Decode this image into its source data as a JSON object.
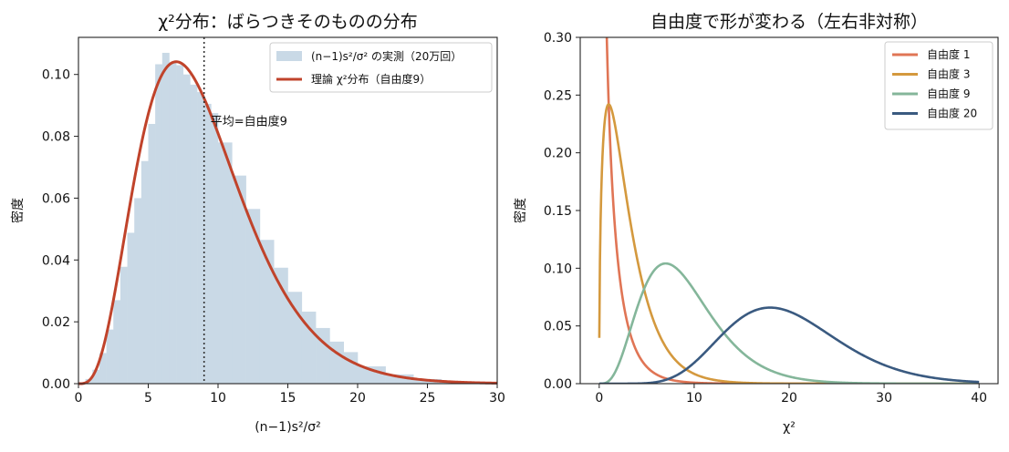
{
  "chart_data": [
    {
      "type": "area",
      "title": "χ²分布：ばらつきそのものの分布",
      "xlabel": "(n−1)s²/σ²",
      "ylabel": "密度",
      "xlim": [
        0,
        30
      ],
      "ylim": [
        0,
        0.112
      ],
      "xticks": [
        "0",
        "5",
        "10",
        "15",
        "20",
        "25",
        "30"
      ],
      "yticks": [
        "0.00",
        "0.02",
        "0.04",
        "0.06",
        "0.08",
        "0.10"
      ],
      "grid": false,
      "legend_position": "top-right",
      "series": [
        {
          "name": "(n−1)s²/σ² の実測（20万回）",
          "kind": "histogram",
          "color": "#c9d9e6",
          "x": [
            0.5,
            1,
            1.5,
            2,
            2.5,
            3,
            3.5,
            4,
            4.5,
            5,
            5.5,
            6,
            6.5,
            7,
            7.5,
            8,
            8.5,
            9,
            9.5,
            10,
            11,
            12,
            13,
            14,
            15,
            16,
            17,
            18,
            19,
            20,
            22,
            24,
            26,
            28,
            30
          ],
          "values": [
            0.0003,
            0.0015,
            0.0045,
            0.0099,
            0.0175,
            0.027,
            0.0378,
            0.0488,
            0.06,
            0.072,
            0.084,
            0.1033,
            0.107,
            0.104,
            0.103,
            0.1,
            0.0967,
            0.0943,
            0.0905,
            0.0875,
            0.078,
            0.0673,
            0.0565,
            0.0465,
            0.0375,
            0.0297,
            0.0233,
            0.018,
            0.0136,
            0.0102,
            0.0056,
            0.003,
            0.0015,
            0.0007,
            0.0003
          ]
        },
        {
          "name": "理論 χ²分布（自由度9）",
          "kind": "line",
          "color": "#c0432b",
          "df": 9
        }
      ],
      "annotations": [
        {
          "text": "平均=自由度9",
          "x": 9,
          "y": 0.085,
          "vline_x": 9
        }
      ]
    },
    {
      "type": "line",
      "title": "自由度で形が変わる（左右非対称）",
      "xlabel": "χ²",
      "ylabel": "密度",
      "xlim": [
        -2,
        42
      ],
      "ylim": [
        0,
        0.3
      ],
      "xticks": [
        "0",
        "10",
        "20",
        "30",
        "40"
      ],
      "yticks": [
        "0.00",
        "0.05",
        "0.10",
        "0.15",
        "0.20",
        "0.25",
        "0.30"
      ],
      "grid": false,
      "legend_position": "top-right",
      "x_range": [
        0.01,
        40
      ],
      "series": [
        {
          "name": "自由度 1",
          "df": 1,
          "color": "#e07555"
        },
        {
          "name": "自由度 3",
          "df": 3,
          "color": "#d4993e"
        },
        {
          "name": "自由度 9",
          "df": 9,
          "color": "#84b69a"
        },
        {
          "name": "自由度 20",
          "df": 20,
          "color": "#3a5a80"
        }
      ]
    }
  ]
}
